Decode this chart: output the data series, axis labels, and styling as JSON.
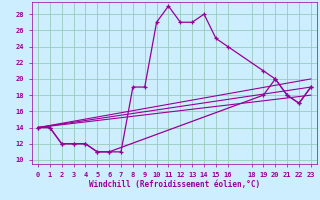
{
  "xlabel": "Windchill (Refroidissement éolien,°C)",
  "background_color": "#cceeff",
  "grid_color": "#99ccbb",
  "line_color": "#990099",
  "xlim": [
    -0.5,
    23.5
  ],
  "ylim": [
    9.5,
    29.5
  ],
  "xticks": [
    0,
    1,
    2,
    3,
    4,
    5,
    6,
    7,
    8,
    9,
    10,
    11,
    12,
    13,
    14,
    15,
    16,
    18,
    19,
    20,
    21,
    22,
    23
  ],
  "yticks": [
    10,
    12,
    14,
    16,
    18,
    20,
    22,
    24,
    26,
    28
  ],
  "series1_x": [
    0,
    1,
    2,
    3,
    4,
    5,
    6,
    7,
    8,
    9,
    10,
    11,
    12,
    13,
    14,
    15,
    16,
    19,
    20,
    21,
    22,
    23
  ],
  "series1_y": [
    14,
    14,
    12,
    12,
    12,
    11,
    11,
    11,
    19,
    19,
    27,
    29,
    27,
    27,
    28,
    25,
    24,
    21,
    20,
    18,
    17,
    19
  ],
  "series2_x": [
    0,
    1,
    2,
    3,
    4,
    5,
    6,
    19,
    20,
    21,
    22,
    23
  ],
  "series2_y": [
    14,
    14,
    12,
    12,
    12,
    11,
    11,
    18,
    20,
    18,
    17,
    19
  ],
  "series3_x": [
    0,
    23
  ],
  "series3_y": [
    14,
    19
  ],
  "series4_x": [
    0,
    23
  ],
  "series4_y": [
    14,
    18
  ],
  "series5_x": [
    0,
    23
  ],
  "series5_y": [
    14,
    20
  ]
}
